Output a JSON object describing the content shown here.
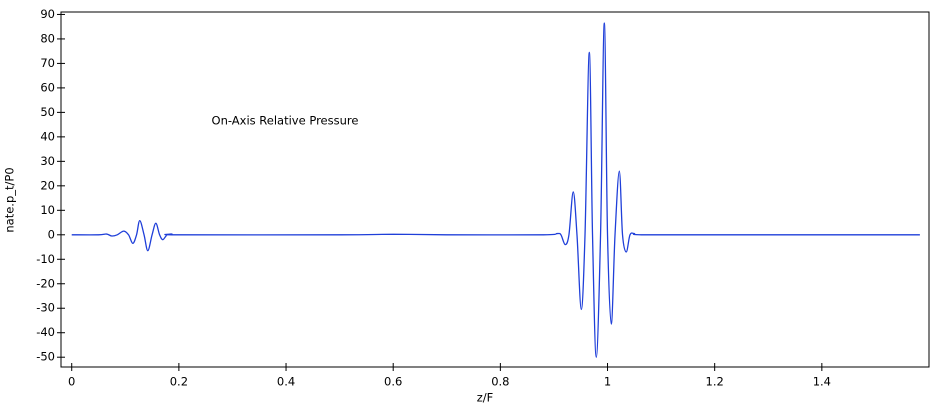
{
  "chart_data": {
    "type": "line",
    "annotation": "On-Axis Relative Pressure",
    "x_label": "z/F",
    "y_label": "nate.p_t/P0",
    "color": "#1f3fd9",
    "x": [
      0,
      0.05,
      0.065,
      0.075,
      0.085,
      0.097,
      0.106,
      0.114,
      0.121,
      0.127,
      0.135,
      0.142,
      0.15,
      0.157,
      0.164,
      0.17,
      0.178,
      0.187,
      0.2,
      0.5,
      0.6,
      0.7,
      0.88,
      0.906,
      0.913,
      0.921,
      0.928,
      0.936,
      0.943,
      0.951,
      0.958,
      0.966,
      0.972,
      0.979,
      0.987,
      0.994,
      1.0,
      1.007,
      1.014,
      1.022,
      1.028,
      1.035,
      1.042,
      1.05,
      1.063,
      1.2,
      1.583
    ],
    "values": [
      0,
      0,
      0.3,
      -0.5,
      0,
      1.5,
      0,
      -3.5,
      0,
      5.8,
      0,
      -6.5,
      0,
      4.7,
      0,
      -2,
      0,
      0.3,
      0,
      0,
      0.2,
      0,
      0,
      0.5,
      0,
      -4,
      0,
      17.5,
      0,
      -30.5,
      0,
      74.5,
      0,
      -50,
      0,
      86.5,
      0,
      -36.5,
      0,
      26,
      0,
      -7,
      0,
      0.5,
      0,
      0,
      0
    ],
    "xlim": [
      -0.02,
      1.6
    ],
    "ylim": [
      -54,
      91
    ],
    "xticks": [
      0,
      0.2,
      0.4,
      0.6,
      0.8,
      1,
      1.2,
      1.4
    ],
    "yticks": [
      -50,
      -40,
      -30,
      -20,
      -10,
      0,
      10,
      20,
      30,
      40,
      50,
      60,
      70,
      80,
      90
    ]
  }
}
